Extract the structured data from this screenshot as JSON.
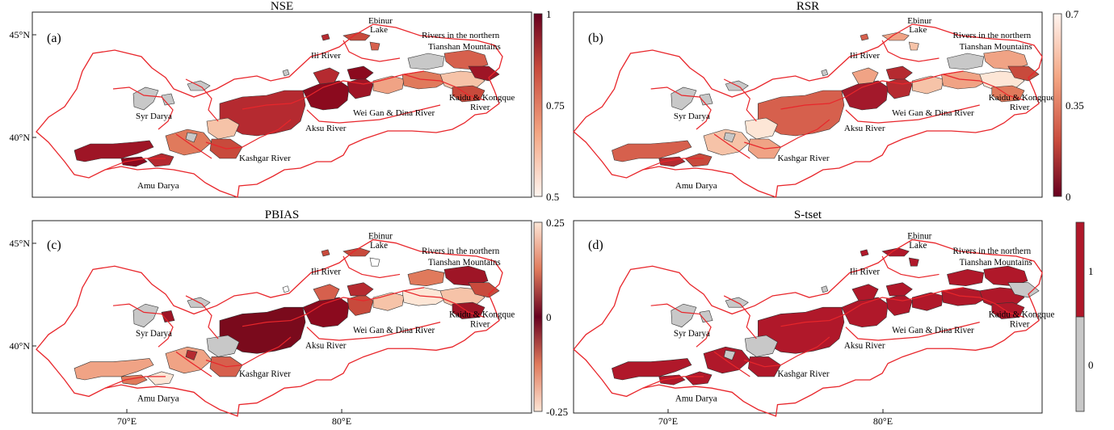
{
  "panels": [
    {
      "id": "a",
      "title": "NSE",
      "tag": "(a)",
      "colorbar": {
        "ticks": [
          "1",
          "0.75",
          "0.5"
        ],
        "scheme": "light-to-dark",
        "range": [
          0.5,
          1
        ]
      }
    },
    {
      "id": "b",
      "title": "RSR",
      "tag": "(b)",
      "colorbar": {
        "ticks": [
          "0.7",
          "0.35",
          "0"
        ],
        "scheme": "dark-to-light",
        "range": [
          0,
          0.7
        ]
      }
    },
    {
      "id": "c",
      "title": "PBIAS",
      "tag": "(c)",
      "colorbar": {
        "ticks": [
          "0.25",
          "0",
          "-0.25"
        ],
        "scheme": "diverging",
        "range": [
          -0.25,
          0.25
        ]
      }
    },
    {
      "id": "d",
      "title": "S-tset",
      "tag": "(d)",
      "colorbar": {
        "ticks": [
          "1",
          "0"
        ],
        "scheme": "binary",
        "values": [
          0,
          1
        ]
      }
    }
  ],
  "basins": {
    "ebinur": "Ebinur",
    "lake": "Lake",
    "northern1": "Rivers in the northern",
    "northern2": "Tianshan Mountains",
    "ili": "Ili River",
    "kaidu1": "Kaidu & Kongque",
    "kaidu2": "River",
    "weigan": "Wei Gan & Dina River",
    "syr": "Syr Darya",
    "aksu": "Aksu River",
    "kashgar": "Kashgar River",
    "amu": "Amu Darya"
  },
  "axes": {
    "lat_labels": [
      "45°N",
      "40°N"
    ],
    "lon_labels": [
      "70°E",
      "80°E"
    ]
  },
  "colors": {
    "boundary": "#e8262b",
    "grey": "#c8c8c8",
    "dark": "#8b0a1e",
    "mid": "#c84a3c",
    "light": "#f3bba0",
    "pale": "#fde6d6"
  }
}
